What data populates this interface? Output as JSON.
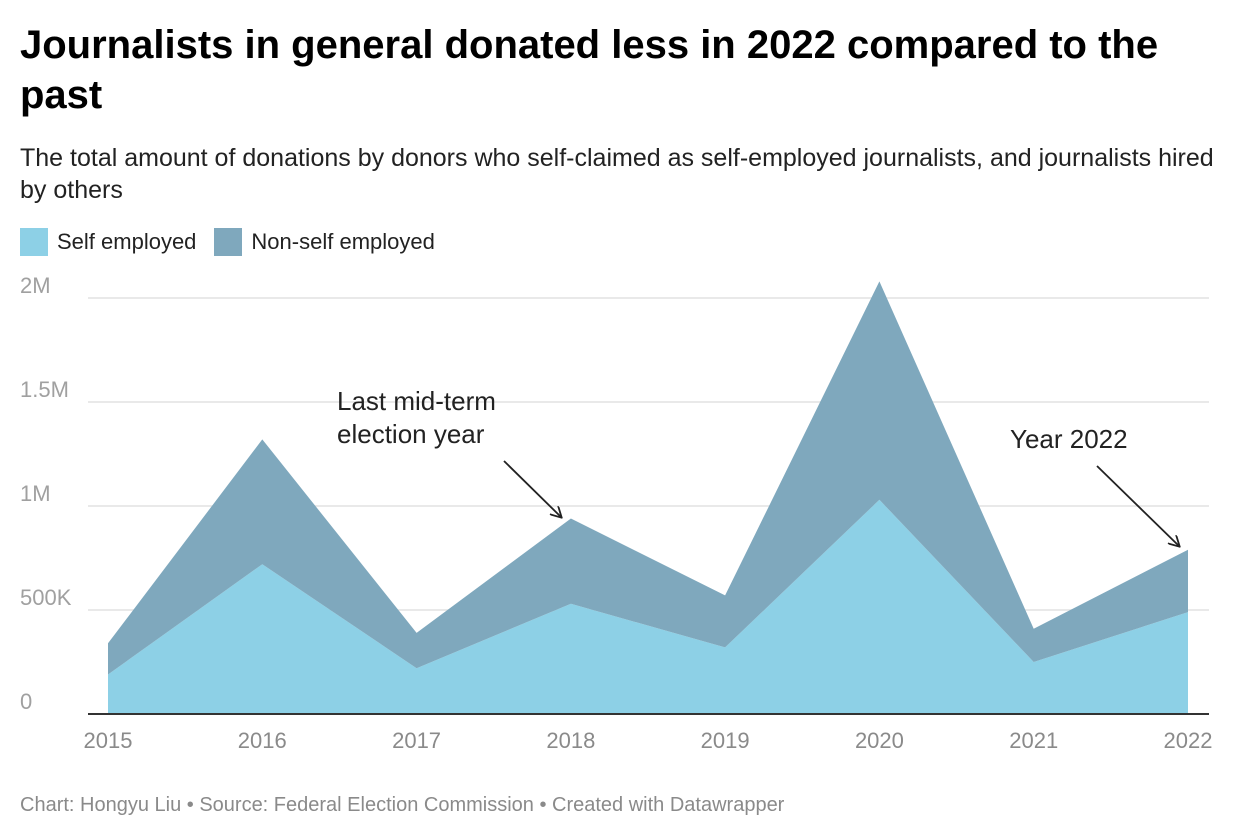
{
  "header": {
    "title": "Journalists in general donated less in 2022 compared to the past",
    "subtitle": "The total amount of donations by donors who self-claimed as self-employed journalists, and journalists hired by others"
  },
  "legend": {
    "items": [
      {
        "label": "Self employed",
        "color": "#8dd0e6"
      },
      {
        "label": "Non-self employed",
        "color": "#7fa8bd"
      }
    ]
  },
  "chart_data": {
    "type": "area",
    "stacked": true,
    "x": [
      "2015",
      "2016",
      "2017",
      "2018",
      "2019",
      "2020",
      "2021",
      "2022"
    ],
    "series": [
      {
        "name": "Self employed",
        "color": "#8dd0e6",
        "values": [
          190000,
          720000,
          220000,
          530000,
          320000,
          1030000,
          250000,
          490000
        ]
      },
      {
        "name": "Non-self employed",
        "color": "#7fa8bd",
        "values": [
          150000,
          600000,
          170000,
          410000,
          250000,
          1050000,
          160000,
          300000
        ]
      }
    ],
    "ylim": [
      0,
      2000000
    ],
    "yticks": [
      {
        "value": 0,
        "label": "0"
      },
      {
        "value": 500000,
        "label": "500K"
      },
      {
        "value": 1000000,
        "label": "1M"
      },
      {
        "value": 1500000,
        "label": "1.5M"
      },
      {
        "value": 2000000,
        "label": "2M"
      }
    ],
    "grid": true,
    "legend_position": "top-left",
    "annotations": [
      {
        "lines": [
          "Last mid-term",
          "election year"
        ],
        "target_x": "2018"
      },
      {
        "lines": [
          "Year 2022"
        ],
        "target_x": "2022"
      }
    ]
  },
  "footer": {
    "credit": "Chart: Hongyu Liu • Source: Federal Election Commission • Created with Datawrapper"
  }
}
